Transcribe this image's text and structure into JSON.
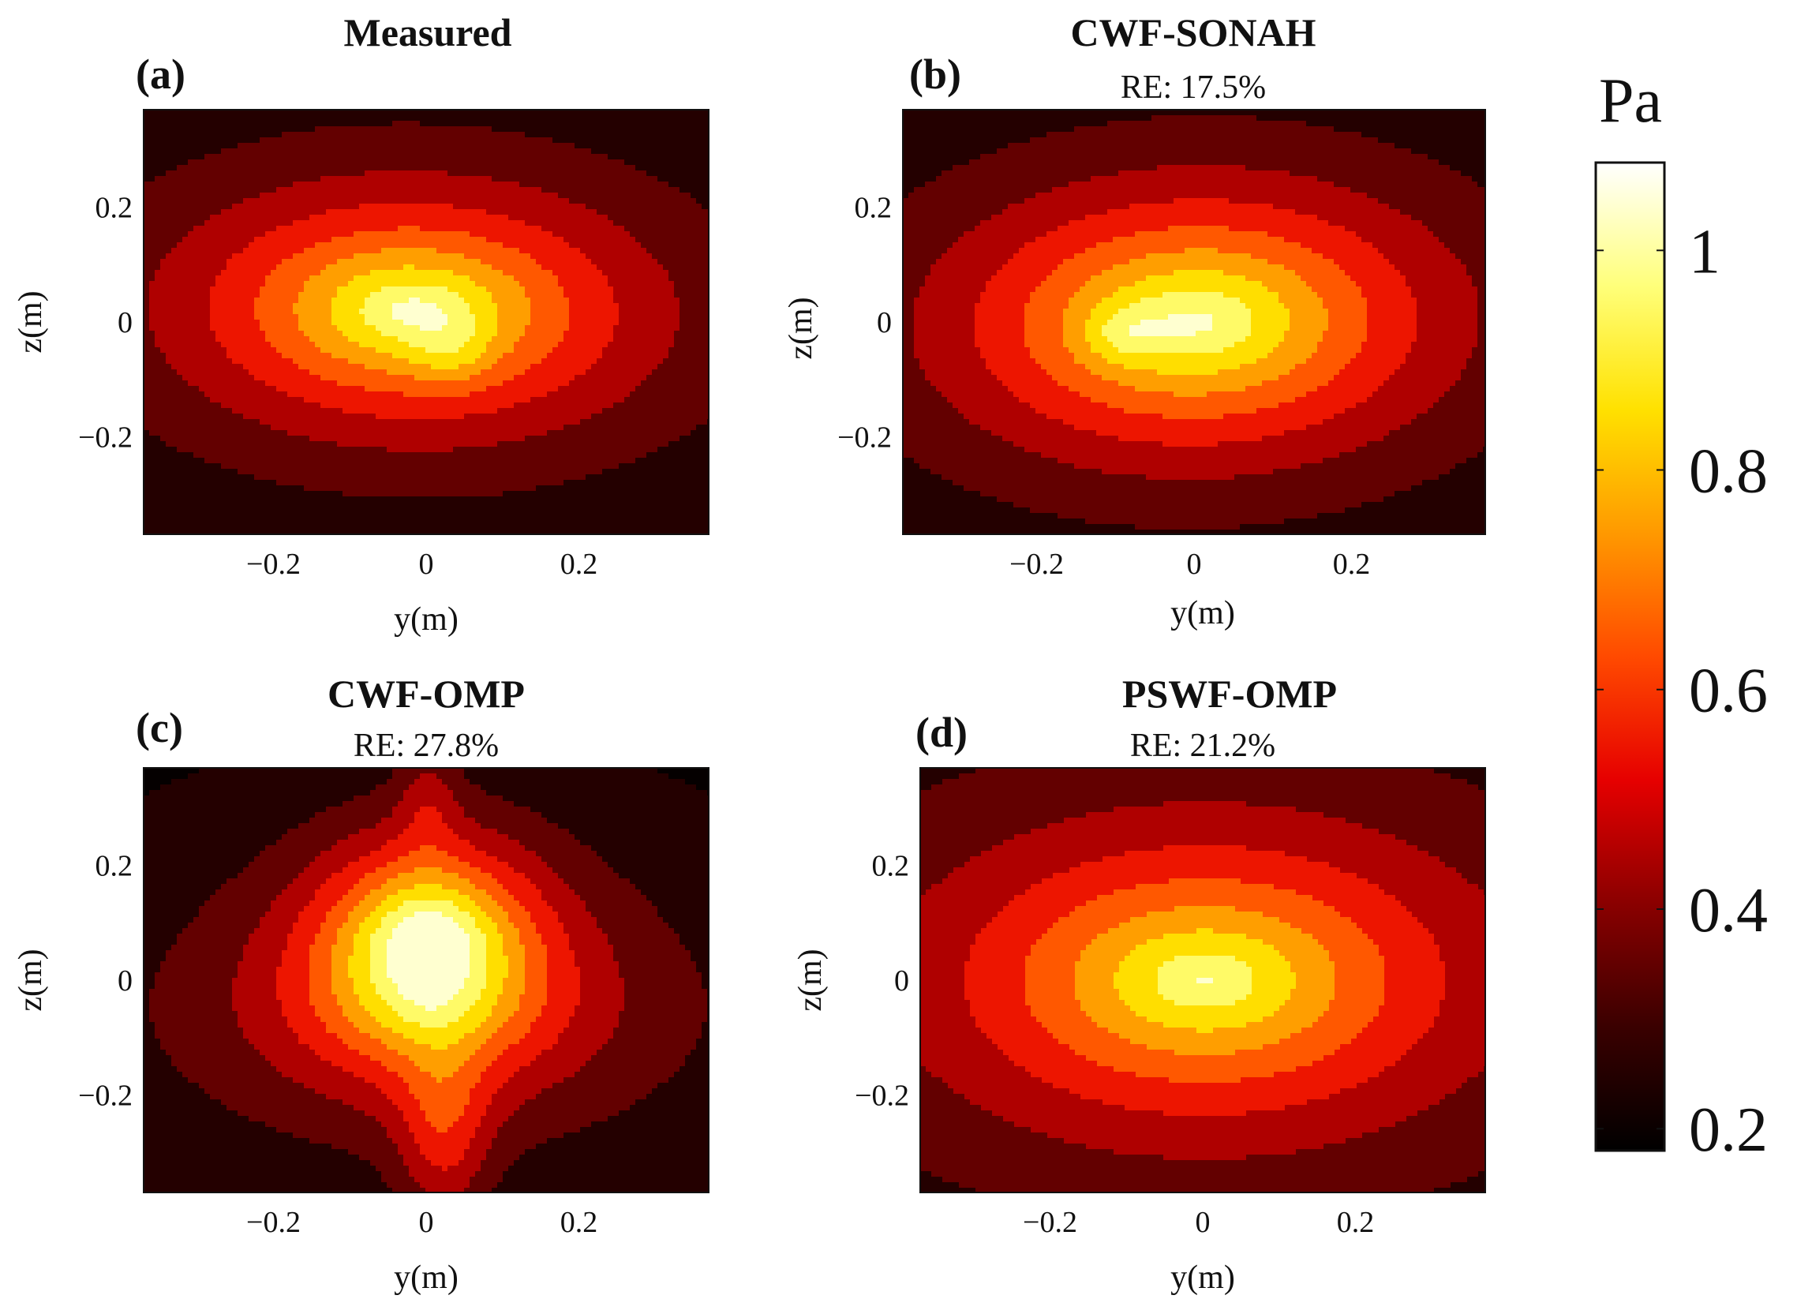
{
  "figure": {
    "colorbar": {
      "unit": "Pa",
      "range": [
        0.18,
        1.08
      ],
      "ticks": [
        0.2,
        0.4,
        0.6,
        0.8,
        1
      ],
      "tick_labels": [
        "0.2",
        "0.4",
        "0.6",
        "0.8",
        "1"
      ],
      "colormap": "hot",
      "stops": [
        "#000000",
        "#3a0000",
        "#8a0000",
        "#e60000",
        "#ff4a00",
        "#ff9900",
        "#ffe100",
        "#ffff7a",
        "#ffffff"
      ]
    }
  },
  "chart_data": [
    {
      "type": "heatmap",
      "subtype": "filled-contour",
      "letter": "(a)",
      "title": "Measured",
      "subtitle": "",
      "xlabel": "y(m)",
      "ylabel": "z(m)",
      "xlim": [
        -0.37,
        0.37
      ],
      "ylim": [
        -0.37,
        0.37
      ],
      "xticks": [
        -0.2,
        0,
        0.2
      ],
      "yticks": [
        -0.2,
        0,
        0.2
      ],
      "xtick_labels": [
        "−0.2",
        "0",
        "0.2"
      ],
      "ytick_labels": [
        "−0.2",
        "0",
        "0.2"
      ],
      "levels": [
        0.2,
        0.3,
        0.4,
        0.5,
        0.6,
        0.7,
        0.8,
        0.9,
        1.0
      ],
      "peaks": [
        {
          "y": -0.02,
          "z": 0.02,
          "amp": 0.88,
          "sy": 0.27,
          "sz": 0.19,
          "shape": 1.2
        },
        {
          "y": 0.03,
          "z": -0.05,
          "amp": 0.12,
          "sy": 0.05,
          "sz": 0.06,
          "shape": 2
        }
      ],
      "base": 0.17,
      "skew": 0.05
    },
    {
      "type": "heatmap",
      "subtype": "filled-contour",
      "letter": "(b)",
      "title": "CWF-SONAH",
      "subtitle": "RE: 17.5%",
      "xlabel": "y(m)",
      "ylabel": "z(m)",
      "xlim": [
        -0.37,
        0.37
      ],
      "ylim": [
        -0.37,
        0.37
      ],
      "xticks": [
        -0.2,
        0,
        0.2
      ],
      "yticks": [
        -0.2,
        0,
        0.2
      ],
      "xtick_labels": [
        "−0.2",
        "0",
        "0.2"
      ],
      "ytick_labels": [
        "−0.2",
        "0",
        "0.2"
      ],
      "levels": [
        0.2,
        0.3,
        0.4,
        0.5,
        0.6,
        0.7,
        0.8,
        0.9,
        1.0
      ],
      "peaks": [
        {
          "y": 0.0,
          "z": 0.0,
          "amp": 0.86,
          "sy": 0.29,
          "sz": 0.22,
          "shape": 1.3
        },
        {
          "y": -0.09,
          "z": -0.02,
          "amp": 0.13,
          "sy": 0.05,
          "sz": 0.05,
          "shape": 2
        }
      ],
      "base": 0.17,
      "skew": -0.05
    },
    {
      "type": "heatmap",
      "subtype": "filled-contour",
      "letter": "(c)",
      "title": "CWF-OMP",
      "subtitle": "RE: 27.8%",
      "xlabel": "y(m)",
      "ylabel": "z(m)",
      "xlim": [
        -0.37,
        0.37
      ],
      "ylim": [
        -0.37,
        0.37
      ],
      "xticks": [
        -0.2,
        0,
        0.2
      ],
      "yticks": [
        -0.2,
        0,
        0.2
      ],
      "xtick_labels": [
        "−0.2",
        "0",
        "0.2"
      ],
      "ytick_labels": [
        "−0.2",
        "0",
        "0.2"
      ],
      "levels": [
        0.2,
        0.3,
        0.4,
        0.5,
        0.6,
        0.7,
        0.8,
        0.9,
        1.0
      ],
      "peaks": [
        {
          "y": 0.0,
          "z": 0.07,
          "amp": 0.76,
          "sy": 0.13,
          "sz": 0.16,
          "shape": 1.5
        },
        {
          "y": 0.0,
          "z": -0.05,
          "amp": 0.4,
          "sy": 0.32,
          "sz": 0.21,
          "shape": 1.3
        },
        {
          "y": 0.02,
          "z": -0.27,
          "amp": 0.25,
          "sy": 0.06,
          "sz": 0.16,
          "shape": 2
        },
        {
          "y": 0.0,
          "z": 0.32,
          "amp": 0.15,
          "sy": 0.04,
          "sz": 0.1,
          "shape": 2
        }
      ],
      "base": 0.17,
      "skew": 0.0
    },
    {
      "type": "heatmap",
      "subtype": "filled-contour",
      "letter": "(d)",
      "title": "PSWF-OMP",
      "subtitle": "RE: 21.2%",
      "xlabel": "y(m)",
      "ylabel": "z(m)",
      "xlim": [
        -0.37,
        0.37
      ],
      "ylim": [
        -0.37,
        0.37
      ],
      "xticks": [
        -0.2,
        0,
        0.2
      ],
      "yticks": [
        -0.2,
        0,
        0.2
      ],
      "xtick_labels": [
        "−0.2",
        "0",
        "0.2"
      ],
      "ytick_labels": [
        "−0.2",
        "0",
        "0.2"
      ],
      "levels": [
        0.2,
        0.3,
        0.4,
        0.5,
        0.6,
        0.7,
        0.8,
        0.9,
        1.0
      ],
      "peaks": [
        {
          "y": 0.0,
          "z": 0.0,
          "amp": 0.82,
          "sy": 0.32,
          "sz": 0.24,
          "shape": 1.2
        }
      ],
      "base": 0.19,
      "skew": 0.0
    }
  ]
}
